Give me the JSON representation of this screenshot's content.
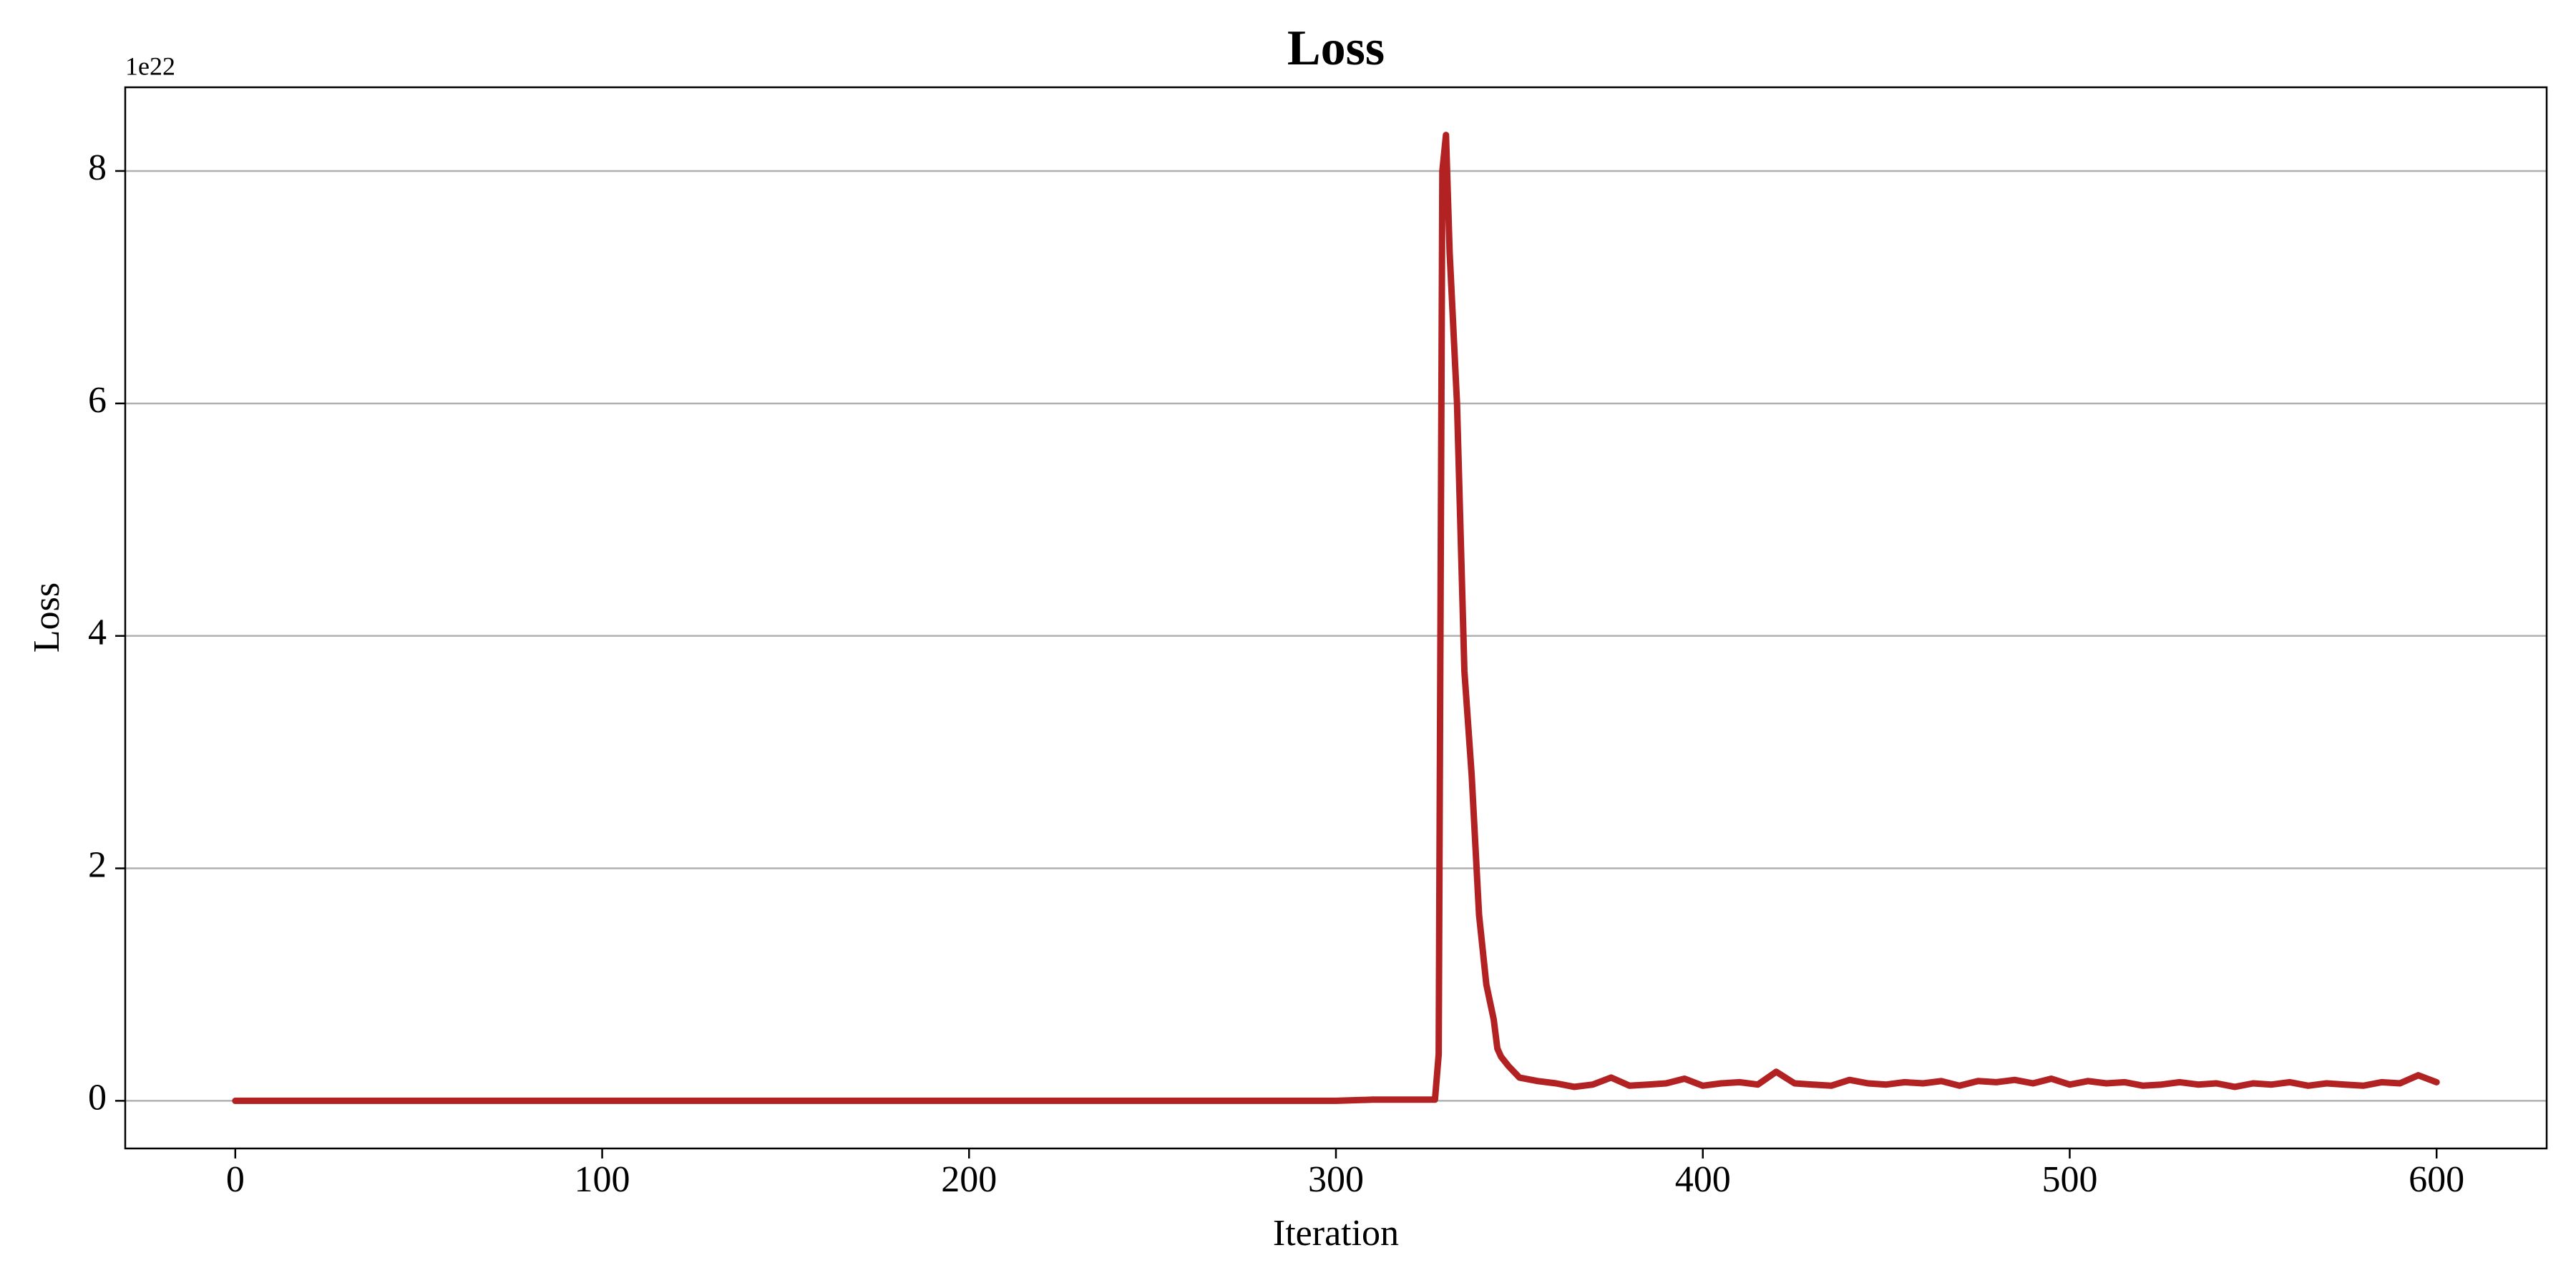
{
  "chart_data": {
    "type": "line",
    "title": "Loss",
    "x_label": "Iteration",
    "y_label": "Loss",
    "y_offset_label": "1e22",
    "x": [
      0,
      50,
      100,
      150,
      200,
      250,
      300,
      310,
      320,
      327,
      328,
      329,
      330,
      331,
      333,
      335,
      337,
      339,
      341,
      343,
      344,
      345,
      347,
      350,
      355,
      360,
      365,
      370,
      375,
      380,
      385,
      390,
      395,
      400,
      405,
      410,
      415,
      420,
      425,
      430,
      435,
      440,
      445,
      450,
      455,
      460,
      465,
      470,
      475,
      480,
      485,
      490,
      495,
      500,
      505,
      510,
      515,
      520,
      525,
      530,
      535,
      540,
      545,
      550,
      555,
      560,
      565,
      570,
      575,
      580,
      585,
      590,
      595,
      600
    ],
    "series": [
      {
        "name": "Loss",
        "color": "#b22222",
        "values": [
          0,
          0,
          0,
          0,
          0,
          0,
          0,
          0.01,
          0.01,
          0.01,
          0.4,
          8.0,
          8.31,
          7.3,
          6.0,
          3.7,
          2.8,
          1.6,
          1.0,
          0.7,
          0.45,
          0.38,
          0.3,
          0.2,
          0.17,
          0.15,
          0.12,
          0.14,
          0.2,
          0.13,
          0.14,
          0.15,
          0.19,
          0.13,
          0.15,
          0.16,
          0.14,
          0.25,
          0.15,
          0.14,
          0.13,
          0.18,
          0.15,
          0.14,
          0.16,
          0.15,
          0.17,
          0.13,
          0.17,
          0.16,
          0.18,
          0.15,
          0.19,
          0.14,
          0.17,
          0.15,
          0.16,
          0.13,
          0.14,
          0.16,
          0.14,
          0.15,
          0.12,
          0.15,
          0.14,
          0.16,
          0.13,
          0.15,
          0.14,
          0.13,
          0.16,
          0.15,
          0.22,
          0.16
        ]
      }
    ],
    "xlim": [
      -30,
      630
    ],
    "xticks": [
      0,
      100,
      200,
      300,
      400,
      500,
      600
    ],
    "ylim": [
      -0.41,
      8.72
    ],
    "yticks": [
      0,
      2,
      4,
      6,
      8
    ],
    "grid": "y"
  }
}
